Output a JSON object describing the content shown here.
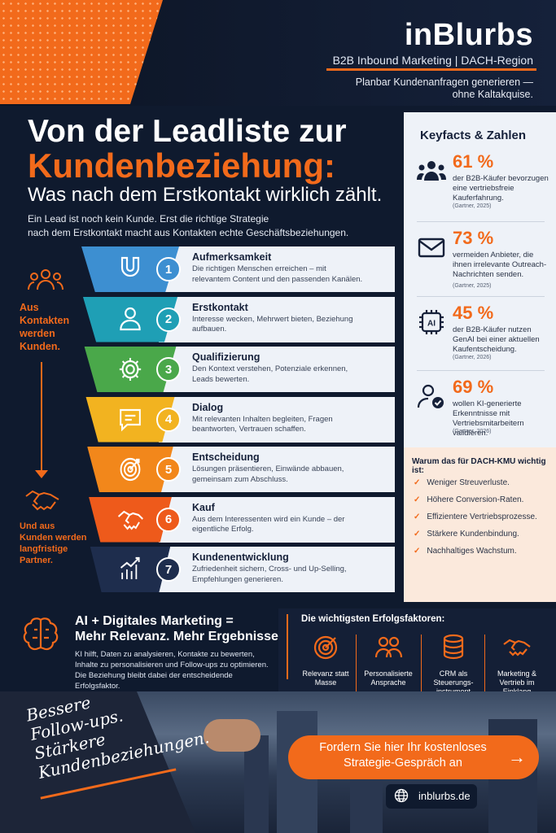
{
  "brand": {
    "name": "inBlurbs",
    "tagline": "B2B Inbound Marketing | DACH-Region",
    "claim_line1": "Planbar Kundenanfragen generieren —",
    "claim_line2": "ohne Kaltakquise."
  },
  "headline": {
    "line1": "Von der Leadliste zur",
    "line2": "Kundenbeziehung:",
    "line3": "Was nach dem Erstkontakt wirklich zählt."
  },
  "intro": {
    "line1": "Ein Lead ist noch kein Kunde. Erst die richtige Strategie",
    "line2": "nach dem Erstkontakt macht aus Kontakten echte Geschäftsbeziehungen."
  },
  "left": {
    "top_text": "Aus Kontakten werden Kunden.",
    "bottom_text": "Und aus Kunden werden langfristige Partner."
  },
  "steps": [
    {
      "num": "1",
      "title": "Aufmerksamkeit",
      "desc": "Die richtigen Menschen erreichen – mit relevantem Content und den passenden Kanälen.",
      "icon": "magnet-icon",
      "color": "#3d8fd1"
    },
    {
      "num": "2",
      "title": "Erstkontakt",
      "desc": "Interesse wecken, Mehrwert bieten, Beziehung aufbauen.",
      "icon": "person-icon",
      "color": "#1f9fb5"
    },
    {
      "num": "3",
      "title": "Qualifizierung",
      "desc": "Den Kontext verstehen, Potenziale erkennen, Leads bewerten.",
      "icon": "gear-icon",
      "color": "#4aa84a"
    },
    {
      "num": "4",
      "title": "Dialog",
      "desc": "Mit relevanten Inhalten begleiten, Fragen beantworten, Vertrauen schaffen.",
      "icon": "chat-icon",
      "color": "#f2b320"
    },
    {
      "num": "5",
      "title": "Entscheidung",
      "desc": "Lösungen präsentieren, Einwände abbauen, gemeinsam zum Abschluss.",
      "icon": "target-icon",
      "color": "#f2871b"
    },
    {
      "num": "6",
      "title": "Kauf",
      "desc": "Aus dem Interessenten wird ein Kunde – der eigentliche Erfolg.",
      "icon": "handshake-icon",
      "color": "#ee5a1b"
    },
    {
      "num": "7",
      "title": "Kundenentwicklung",
      "desc": "Zufriedenheit sichern, Cross- und Up-Selling, Empfehlungen generieren.",
      "icon": "growth-chart-icon",
      "color": "#1e2d4d"
    }
  ],
  "facts": {
    "title": "Keyfacts & Zahlen",
    "items": [
      {
        "pct": "61 %",
        "text": "der B2B-Käufer bevorzugen eine vertriebsfreie Kauferfahrung.",
        "source": "(Gartner, 2025)",
        "icon": "group-icon"
      },
      {
        "pct": "73 %",
        "text": "vermeiden Anbieter, die ihnen irrelevante Outreach-Nachrichten senden.",
        "source": "(Gartner, 2025)",
        "icon": "mail-icon"
      },
      {
        "pct": "45 %",
        "text": "der B2B-Käufer nutzen GenAI bei einer aktuellen Kaufentscheidung.",
        "source": "(Gartner, 2026)",
        "icon": "ai-chip-icon"
      },
      {
        "pct": "69 %",
        "text": "wollen KI-generierte Erkenntnisse mit Vertriebsmitarbeitern validieren.",
        "source": "(Gartner, 2026)",
        "icon": "user-check-icon"
      }
    ]
  },
  "why": {
    "title": "Warum das für DACH-KMU wichtig ist:",
    "items": [
      "Weniger Streuverluste.",
      "Höhere Conversion-Raten.",
      "Effizientere Vertriebsprozesse.",
      "Stärkere Kundenbindung.",
      "Nachhaltiges Wachstum."
    ]
  },
  "ai": {
    "heading_line1": "AI + Digitales Marketing =",
    "heading_line2": "Mehr Relevanz. Mehr Ergebnisse.",
    "text": "KI hilft, Daten zu analysieren, Kontakte zu bewerten, Inhalte zu personalisieren und Follow-ups zu optimieren. Die Beziehung bleibt dabei der entscheidende Erfolgsfaktor."
  },
  "success": {
    "title": "Die wichtigsten Erfolgsfaktoren:",
    "items": [
      {
        "label": "Relevanz statt Masse",
        "icon": "target-icon"
      },
      {
        "label": "Personalisierte Ansprache",
        "icon": "people-icon"
      },
      {
        "label": "CRM als Steuerungs-instrument",
        "icon": "database-icon"
      },
      {
        "label": "Marketing & Vertrieb im Einklang",
        "icon": "handshake-icon"
      }
    ]
  },
  "script": {
    "line1": "Bessere",
    "line2": "Follow-ups.",
    "line3": "Stärkere",
    "line4": "Kundenbeziehungen."
  },
  "cta": {
    "line1": "Fordern Sie hier Ihr kostenloses",
    "line2": "Strategie-Gespräch an",
    "arrow": "→"
  },
  "website": "inblurbs.de",
  "colors": {
    "accent": "#f26a1b",
    "navy": "#0f1a2e",
    "light": "#eef2f8"
  }
}
